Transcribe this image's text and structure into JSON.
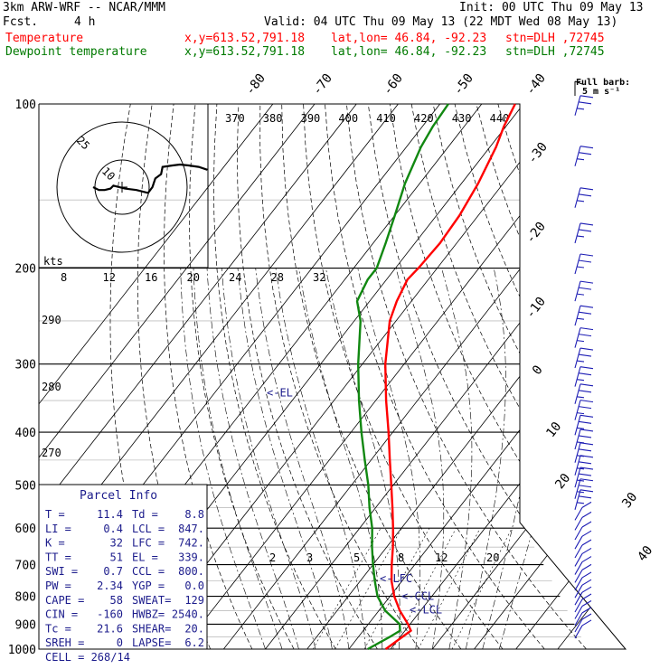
{
  "header": {
    "model": "3km ARW-WRF -- NCAR/MMM",
    "init": "Init: 00 UTC Thu 09 May 13",
    "fcst_label": "Fcst.",
    "fcst_value": "4 h",
    "valid": "Valid: 04 UTC Thu 09 May 13 (22 MDT Wed 08 May 13)"
  },
  "legend": [
    {
      "name": "Temperature",
      "xy": "x,y=613.52,791.18",
      "latlon": "lat,lon= 46.84, -92.23",
      "stn": "stn=DLH ,72745",
      "color": "#ff0000"
    },
    {
      "name": "Dewpoint temperature",
      "xy": "x,y=613.52,791.18",
      "latlon": "lat,lon= 46.84, -92.23",
      "stn": "stn=DLH ,72745",
      "color": "#007a00"
    }
  ],
  "barb_key": {
    "line1": "Full barb:",
    "line2": "5 m s⁻¹"
  },
  "colors": {
    "temperature": "#ff0000",
    "dewpoint": "#118811",
    "grid": "#000000",
    "label_blue": "#1c1c8c",
    "hodo": "#000000"
  },
  "chart_data": {
    "type": "line",
    "skewt_ylim_hpa": [
      1000,
      100
    ],
    "pressure_ticks": [
      "100",
      "200",
      "300",
      "400",
      "500",
      "600",
      "700",
      "800",
      "900",
      "1000"
    ],
    "isotherm_labels": [
      "-80",
      "-70",
      "-60",
      "-50",
      "-40",
      "-30",
      "-20",
      "-10",
      "0",
      "10",
      "20",
      "30",
      "40"
    ],
    "theta_labels": [
      "370",
      "380",
      "390",
      "400",
      "410",
      "420",
      "430",
      "440"
    ],
    "dry_adiabat_labels": [
      "290",
      "280",
      "270"
    ],
    "mixing_ratio_labels": [
      "2",
      "3",
      "5",
      "8",
      "12",
      "20"
    ],
    "series": [
      {
        "name": "Temperature",
        "p": [
          1000,
          950,
          925,
          900,
          850,
          800,
          750,
          700,
          650,
          600,
          550,
          500,
          450,
          400,
          350,
          300,
          250,
          230,
          210,
          200,
          180,
          160,
          140,
          120,
          110,
          100
        ],
        "t": [
          8.8,
          10.5,
          11.4,
          9.5,
          5.0,
          1.0,
          -2.5,
          -5.5,
          -8.5,
          -12.0,
          -16.0,
          -20.5,
          -25.5,
          -31.0,
          -37.5,
          -44.5,
          -51.5,
          -53.5,
          -55.0,
          -54.5,
          -54.0,
          -54.5,
          -56.0,
          -58.5,
          -60.5,
          -62.0
        ]
      },
      {
        "name": "Dewpoint temperature",
        "p": [
          1000,
          950,
          925,
          900,
          850,
          800,
          750,
          700,
          650,
          600,
          550,
          500,
          450,
          400,
          350,
          300,
          250,
          230,
          210,
          200,
          180,
          160,
          140,
          120,
          110,
          100
        ],
        "t": [
          4.5,
          7.5,
          8.8,
          7.5,
          1.5,
          -3.0,
          -6.5,
          -10.0,
          -13.5,
          -17.0,
          -21.5,
          -26.0,
          -31.5,
          -37.5,
          -44.0,
          -51.0,
          -58.5,
          -63.0,
          -64.5,
          -64.5,
          -67.0,
          -70.0,
          -73.5,
          -76.5,
          -77.5,
          -78.0
        ]
      }
    ],
    "annotations": [
      {
        "label": "<-EL",
        "p": 339
      },
      {
        "label": "<-LFC",
        "p": 742
      },
      {
        "label": "<-CCL",
        "p": 800
      },
      {
        "label": "<-LCL",
        "p": 847
      }
    ],
    "hodograph": {
      "units": "kts",
      "ring_labels": [
        "10",
        "25"
      ],
      "speed_scale_labels": [
        "8",
        "12",
        "16",
        "20",
        "24",
        "28",
        "32"
      ],
      "path_u_kts": [
        -10,
        -8,
        -6,
        -4,
        -3,
        1,
        5,
        9,
        10.5,
        11.5,
        13.5,
        14,
        17.5,
        20,
        23,
        26.5,
        29.5
      ],
      "path_v_kts": [
        0,
        -1,
        -1,
        -0.5,
        0.5,
        -0.5,
        -1,
        -2,
        0,
        3,
        4.5,
        7,
        7.5,
        7.8,
        7.5,
        7,
        6
      ],
      "storm_motion": "268/14"
    },
    "wind_barbs_pressure_hpa": [
      955,
      930,
      905,
      880,
      855,
      830,
      805,
      780,
      755,
      730,
      705,
      680,
      655,
      630,
      605,
      580,
      555,
      530,
      505,
      480,
      455,
      430,
      405,
      380,
      355,
      330,
      305,
      280,
      255,
      230,
      205,
      180,
      155,
      130,
      105
    ]
  },
  "parcel_info": {
    "title": "Parcel Info",
    "left": [
      {
        "label": "T  =",
        "value": "11.4"
      },
      {
        "label": "LI =",
        "value": "0.4"
      },
      {
        "label": "K  =",
        "value": "32"
      },
      {
        "label": "TT =",
        "value": "51"
      },
      {
        "label": "SWI =",
        "value": "0.7"
      },
      {
        "label": "PW =",
        "value": "2.34"
      },
      {
        "label": "CAPE =",
        "value": "58"
      },
      {
        "label": "CIN =",
        "value": "-160"
      },
      {
        "label": "Tc =",
        "value": "21.6"
      },
      {
        "label": "SREH =",
        "value": "0"
      }
    ],
    "right": [
      {
        "label": "Td =",
        "value": "8.8"
      },
      {
        "label": "LCL =",
        "value": "847."
      },
      {
        "label": "LFC =",
        "value": "742."
      },
      {
        "label": "EL =",
        "value": "339."
      },
      {
        "label": "CCL =",
        "value": "800."
      },
      {
        "label": "YGP =",
        "value": "0.0"
      },
      {
        "label": "SWEAT=",
        "value": "129"
      },
      {
        "label": "HWBZ=",
        "value": "2540."
      },
      {
        "label": "SHEAR=",
        "value": "20."
      },
      {
        "label": "LAPSE=",
        "value": "6.2"
      }
    ],
    "cell": "CELL = 268/14"
  }
}
